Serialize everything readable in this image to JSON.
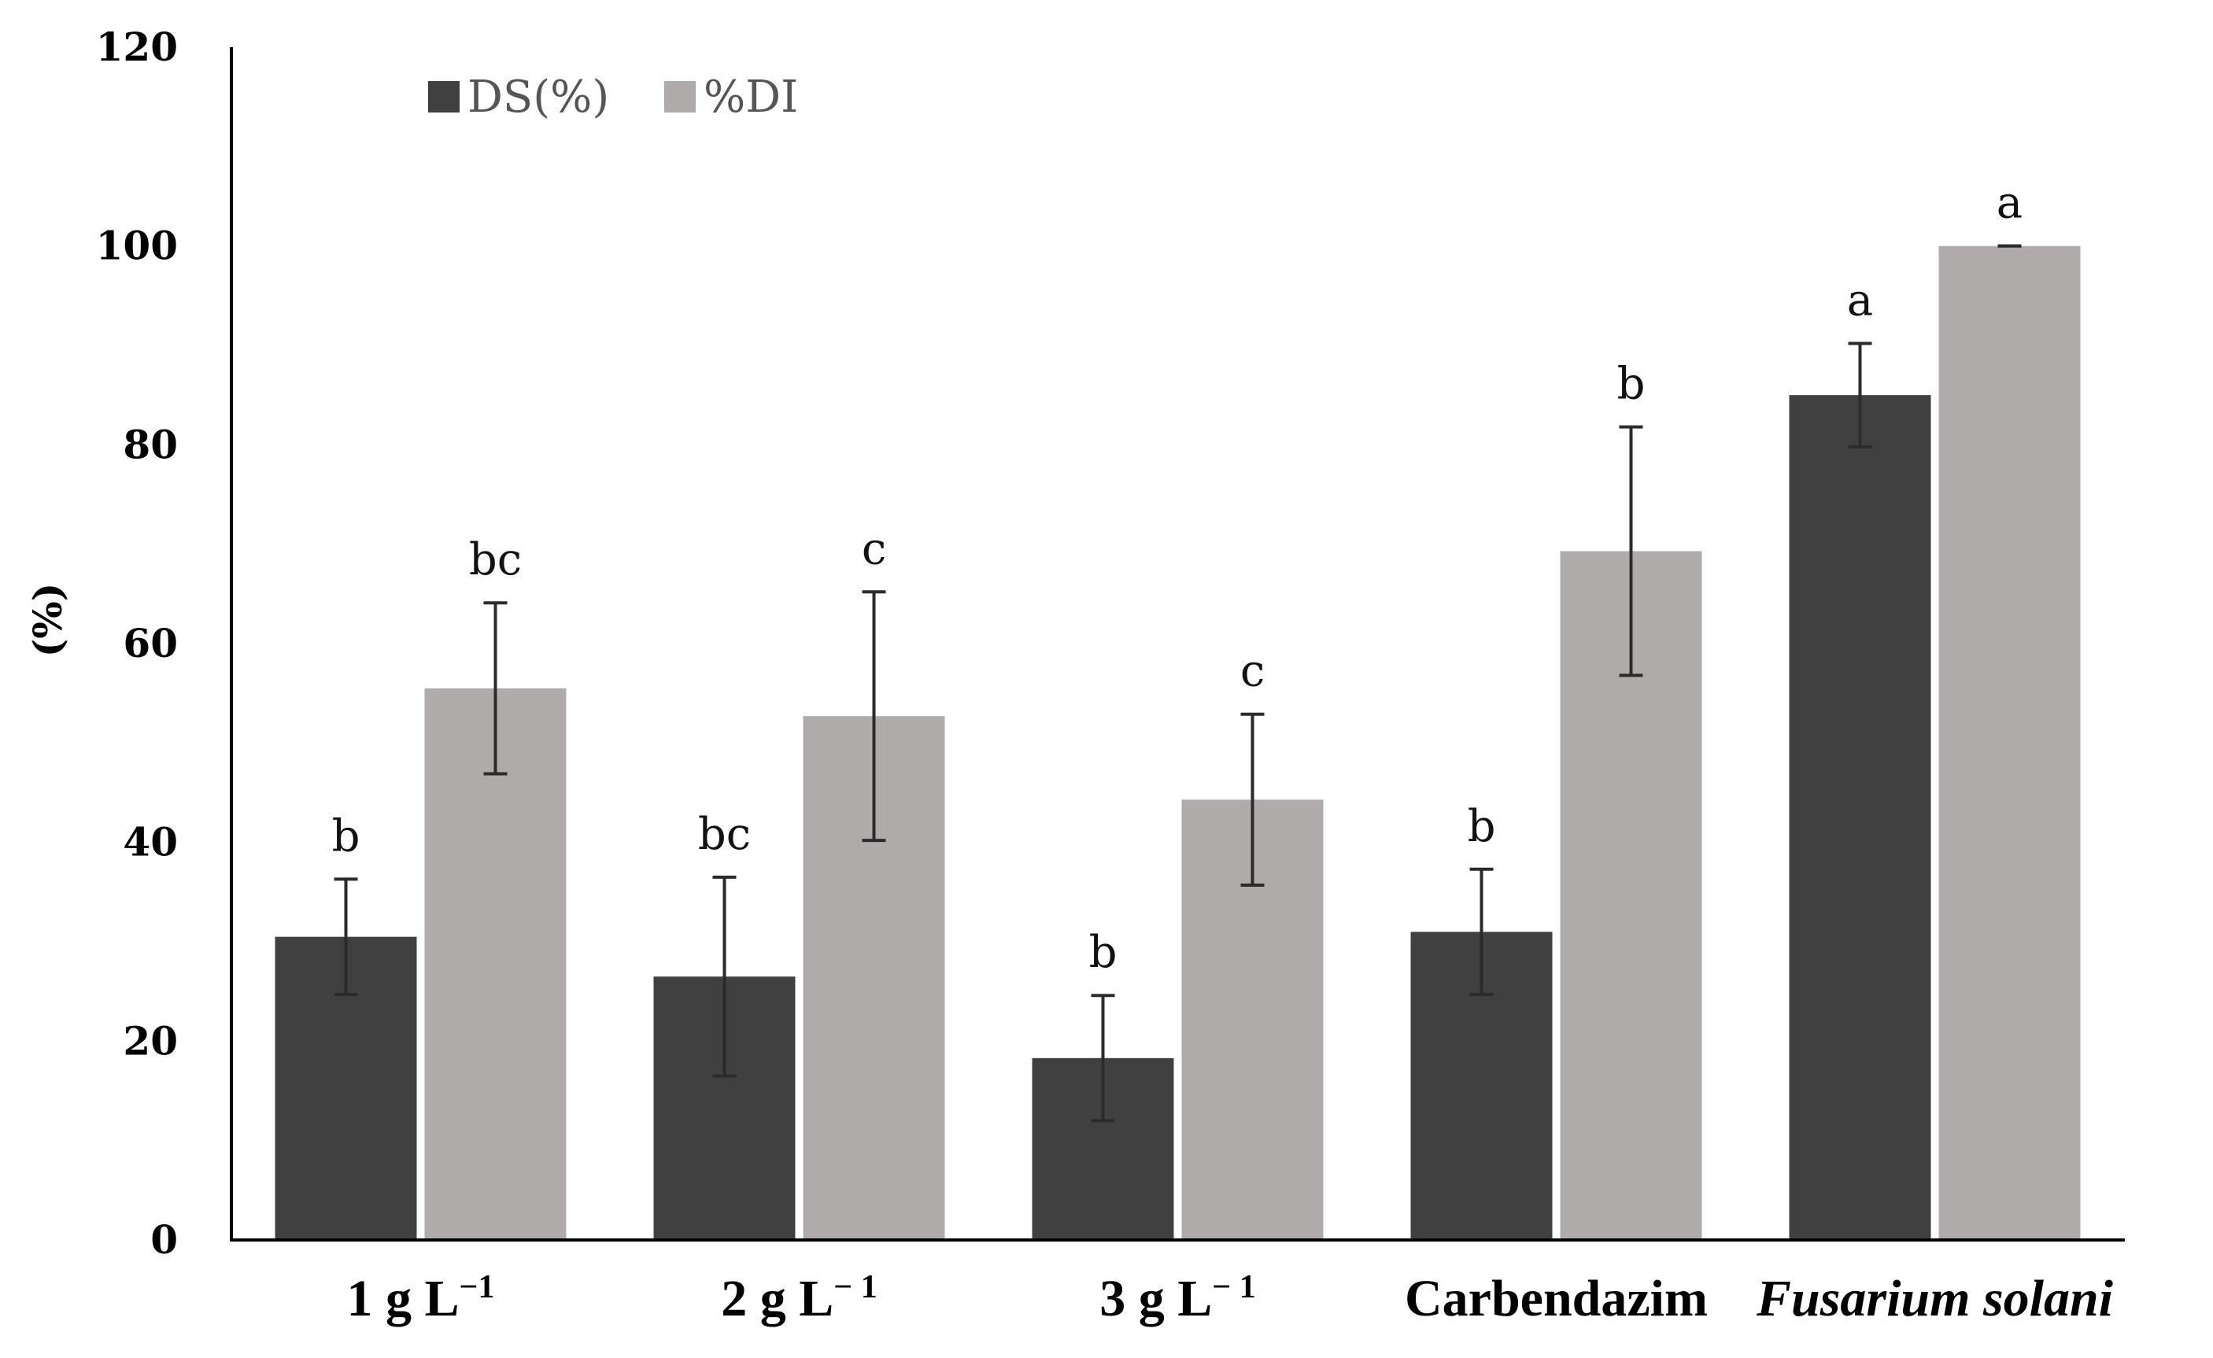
{
  "chart_data": {
    "type": "bar",
    "title": "",
    "xlabel": "",
    "ylabel": "(%)",
    "ylim": [
      0,
      120
    ],
    "yticks": [
      0,
      20,
      40,
      60,
      80,
      100,
      120
    ],
    "grid": false,
    "legend_position": "top-left",
    "categories": [
      {
        "text": "1 g L",
        "sup": "−1",
        "italic": false
      },
      {
        "text": "2 g L",
        "sup": "− 1",
        "italic": false
      },
      {
        "text": "3 g L",
        "sup": "− 1",
        "italic": false
      },
      {
        "text": "Carbendazim",
        "sup": "",
        "italic": false
      },
      {
        "text": "Fusarium solani",
        "sup": "",
        "italic": true
      }
    ],
    "series": [
      {
        "name": "DS(%)",
        "color": "#404040",
        "values": [
          30.5,
          26.5,
          18.3,
          31,
          85
        ],
        "errors": [
          5.8,
          10,
          6.3,
          6.3,
          5.2
        ],
        "significance": [
          "b",
          "bc",
          "b",
          "b",
          "a"
        ]
      },
      {
        "name": "%DI",
        "color": "#afabab",
        "values": [
          55.5,
          52.7,
          44.3,
          69.3,
          100
        ],
        "errors": [
          8.6,
          12.5,
          8.6,
          12.5,
          0
        ],
        "significance": [
          "bc",
          "c",
          "c",
          "b",
          "a"
        ]
      }
    ]
  }
}
